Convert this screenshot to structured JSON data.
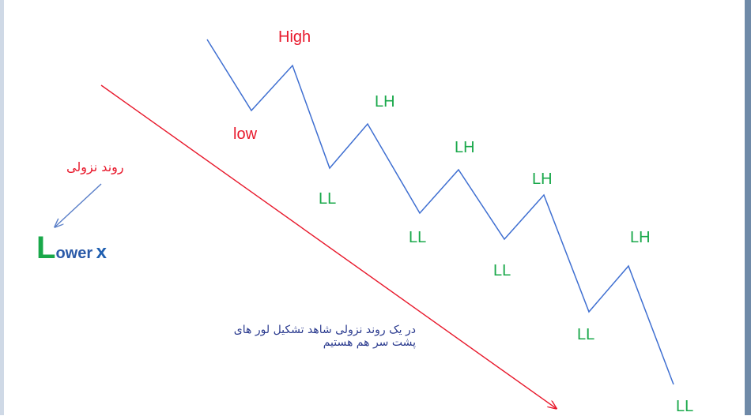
{
  "labels": {
    "high": "High",
    "low": "low",
    "lh": [
      "LH",
      "LH",
      "LH",
      "LH"
    ],
    "ll": [
      "LL",
      "LL",
      "LL",
      "LL",
      "LL"
    ]
  },
  "trend_title": "روند نزولی",
  "caption": "در یک روند نزولی شاهد تشکیل لور های پشت سر هم هستیم",
  "lower": {
    "initial": "L",
    "rest": "ower",
    "x": "x"
  },
  "colors": {
    "zigzag": "#3f6fd1",
    "trend_arrow": "#e8192c",
    "pointer_arrow": "#5a7fc8",
    "red_text": "#e8192c",
    "green_text": "#19a84a"
  }
}
